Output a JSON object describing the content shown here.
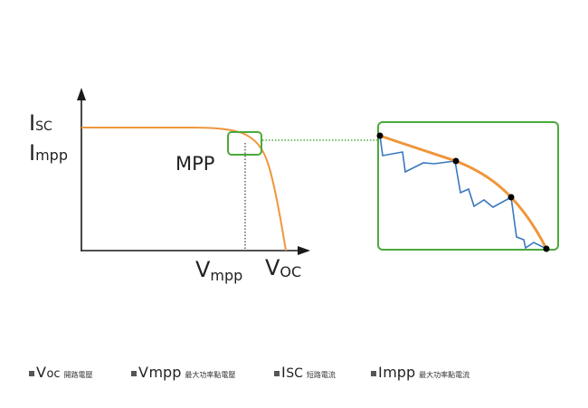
{
  "labels": {
    "isc": {
      "main": "I",
      "sub": "SC"
    },
    "impp": {
      "main": "I",
      "sub": "mpp"
    },
    "mpp": "MPP",
    "vmpp": {
      "main": "V",
      "sub": "mpp"
    },
    "voc": {
      "main": "V",
      "sub": "OC"
    }
  },
  "legend": [
    {
      "main": "V",
      "rest": "oc",
      "desc": "開路電壓"
    },
    {
      "main": "V",
      "rest": "mpp",
      "desc": "最大功率點電壓"
    },
    {
      "main": "I",
      "rest": "SC",
      "desc": "短路電流"
    },
    {
      "main": "I",
      "rest": "mpp",
      "desc": "最大功率點電流"
    }
  ],
  "colors": {
    "curve": "#f0963c",
    "highlight": "#4caa3c",
    "tracking": "#3a78c0",
    "axis": "#1a1a1a",
    "point": "#000000"
  }
}
